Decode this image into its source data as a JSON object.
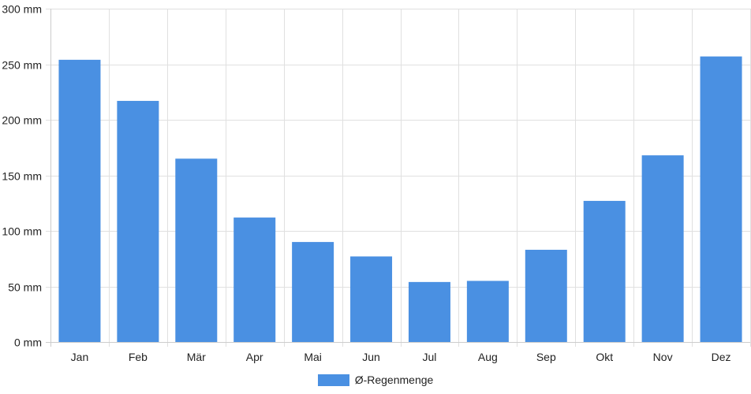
{
  "chart_data": {
    "type": "bar",
    "categories": [
      "Jan",
      "Feb",
      "Mär",
      "Apr",
      "Mai",
      "Jun",
      "Jul",
      "Aug",
      "Sep",
      "Okt",
      "Nov",
      "Dez"
    ],
    "series": [
      {
        "name": "Ø-Regenmenge",
        "values": [
          254,
          217,
          165,
          112,
          90,
          77,
          54,
          55,
          83,
          127,
          168,
          257
        ]
      }
    ],
    "ylim": [
      0,
      300
    ],
    "yticks": [
      {
        "value": 0,
        "label": "0 mm"
      },
      {
        "value": 50,
        "label": "50 mm"
      },
      {
        "value": 100,
        "label": "100 mm"
      },
      {
        "value": 150,
        "label": "150 mm"
      },
      {
        "value": 200,
        "label": "200 mm"
      },
      {
        "value": 250,
        "label": "250 mm"
      },
      {
        "value": 300,
        "label": "300 mm"
      }
    ],
    "grid": true,
    "legend_position": "bottom",
    "colors": {
      "bar": "#4a90e2",
      "grid": "#e0e0e0",
      "axis": "#cccccc"
    }
  }
}
